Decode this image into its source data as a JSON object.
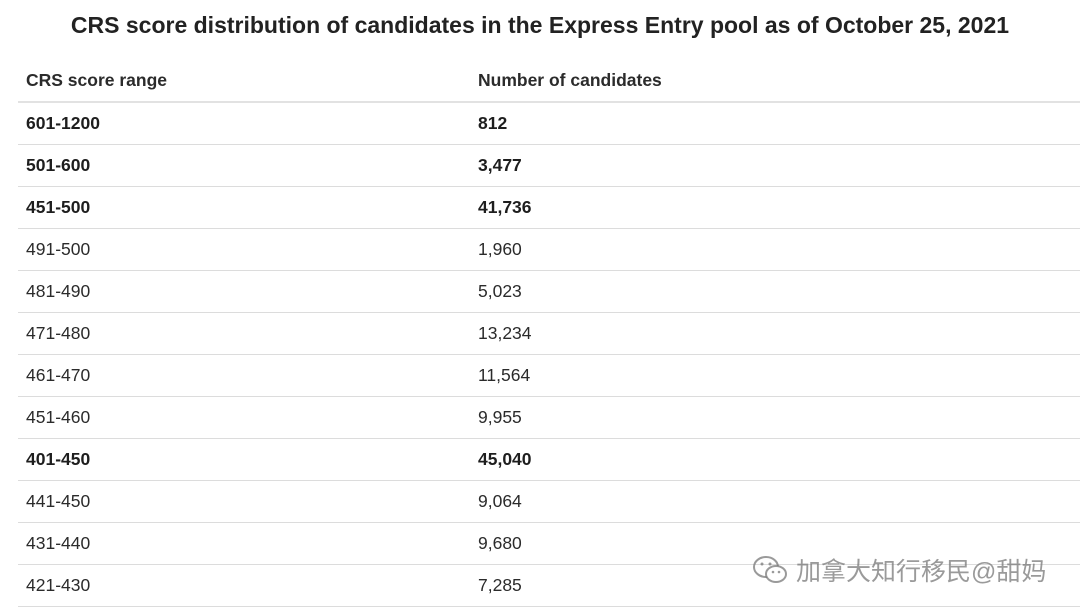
{
  "title": "CRS score distribution of candidates in the Express Entry pool as of October 25, 2021",
  "table": {
    "columns": [
      "CRS score range",
      "Number of candidates"
    ],
    "rows": [
      {
        "cells": [
          "601-1200",
          "812"
        ],
        "bold": true
      },
      {
        "cells": [
          "501-600",
          "3,477"
        ],
        "bold": true
      },
      {
        "cells": [
          "451-500",
          "41,736"
        ],
        "bold": true
      },
      {
        "cells": [
          "491-500",
          "1,960"
        ],
        "bold": false
      },
      {
        "cells": [
          "481-490",
          "5,023"
        ],
        "bold": false
      },
      {
        "cells": [
          "471-480",
          "13,234"
        ],
        "bold": false
      },
      {
        "cells": [
          "461-470",
          "11,564"
        ],
        "bold": false
      },
      {
        "cells": [
          "451-460",
          "9,955"
        ],
        "bold": false
      },
      {
        "cells": [
          "401-450",
          "45,040"
        ],
        "bold": true
      },
      {
        "cells": [
          "441-450",
          "9,064"
        ],
        "bold": false
      },
      {
        "cells": [
          "431-440",
          "9,680"
        ],
        "bold": false
      },
      {
        "cells": [
          "421-430",
          "7,285"
        ],
        "bold": false
      }
    ]
  },
  "watermark": "加拿大知行移民@甜妈"
}
